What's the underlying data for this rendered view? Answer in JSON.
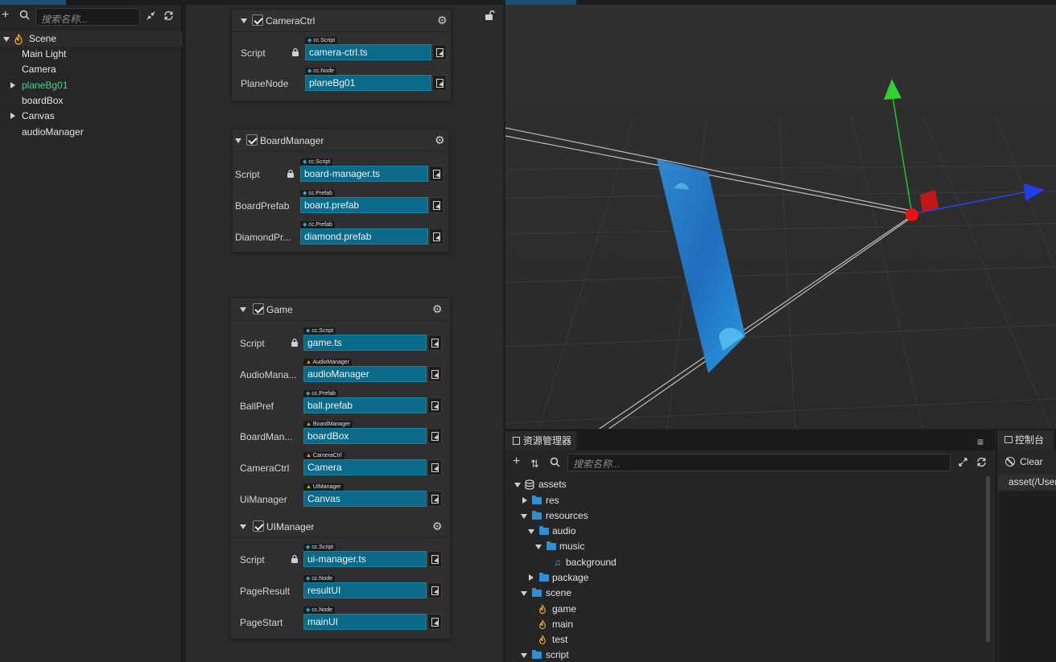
{
  "hierarchy": {
    "search_placeholder": "搜索名称...",
    "tree": [
      {
        "label": "Scene",
        "expanded": true
      },
      {
        "label": "Main Light"
      },
      {
        "label": "Camera"
      },
      {
        "label": "planeBg01",
        "collapsed": true,
        "color": "#45d58a"
      },
      {
        "label": "boardBox"
      },
      {
        "label": "Canvas",
        "collapsed": true
      },
      {
        "label": "audioManager"
      }
    ]
  },
  "inspector": {
    "components": [
      {
        "title": "CameraCtrl",
        "props": [
          {
            "label": "Script",
            "tag": "cc.Script",
            "value": "camera-ctrl.ts",
            "locked": true
          },
          {
            "label": "PlaneNode",
            "tag": "cc.Node",
            "value": "planeBg01"
          }
        ]
      },
      {
        "title": "BoardManager",
        "props": [
          {
            "label": "Script",
            "tag": "cc.Script",
            "value": "board-manager.ts",
            "locked": true
          },
          {
            "label": "BoardPrefab",
            "tag": "cc.Prefab",
            "value": "board.prefab"
          },
          {
            "label": "DiamondPr...",
            "tag": "cc.Prefab",
            "value": "diamond.prefab"
          }
        ]
      },
      {
        "title": "Game",
        "props": [
          {
            "label": "Script",
            "tag": "cc.Script",
            "value": "game.ts",
            "locked": true
          },
          {
            "label": "AudioMana...",
            "tag": "AudioManager",
            "value": "audioManager"
          },
          {
            "label": "BallPref",
            "tag": "cc.Prefab",
            "value": "ball.prefab"
          },
          {
            "label": "BoardMan...",
            "tag": "BoardManager",
            "value": "boardBox"
          },
          {
            "label": "CameraCtrl",
            "tag": "CameraCtrl",
            "value": "Camera"
          },
          {
            "label": "UiManager",
            "tag": "UIManager",
            "value": "Canvas"
          }
        ]
      },
      {
        "title": "UIManager",
        "props": [
          {
            "label": "Script",
            "tag": "cc.Script",
            "value": "ui-manager.ts",
            "locked": true
          },
          {
            "label": "PageResult",
            "tag": "cc.Node",
            "value": "resultUI"
          },
          {
            "label": "PageStart",
            "tag": "cc.Node",
            "value": "mainUI"
          }
        ]
      }
    ]
  },
  "assets": {
    "tab_label": "资源管理器",
    "search_placeholder": "搜索名称...",
    "tree": [
      {
        "label": "assets",
        "kind": "db",
        "expanded": true
      },
      {
        "label": "res",
        "kind": "folder",
        "collapsed": true
      },
      {
        "label": "resources",
        "kind": "folder",
        "expanded": true
      },
      {
        "label": "audio",
        "kind": "folder",
        "expanded": true
      },
      {
        "label": "music",
        "kind": "folder",
        "expanded": true
      },
      {
        "label": "background",
        "kind": "audio"
      },
      {
        "label": "package",
        "kind": "folder",
        "collapsed": true
      },
      {
        "label": "scene",
        "kind": "folder",
        "expanded": true
      },
      {
        "label": "game",
        "kind": "scene"
      },
      {
        "label": "main",
        "kind": "scene"
      },
      {
        "label": "test",
        "kind": "scene"
      },
      {
        "label": "script",
        "kind": "folder",
        "expanded": true
      }
    ]
  },
  "console": {
    "tab_label": "控制台",
    "clear_label": "Clear",
    "log_line": "asset(/Users"
  },
  "colors": {
    "accent": "#1d4f74",
    "field": "#0b6a8a",
    "folder": "#2e8fd6",
    "node_prefab": "#45d58a"
  }
}
